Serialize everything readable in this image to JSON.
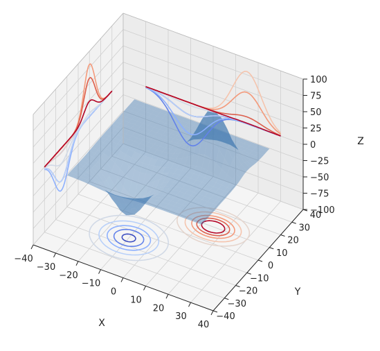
{
  "chart_data": {
    "type": "surface",
    "title": "",
    "xlabel": "X",
    "ylabel": "Y",
    "zlabel": "Z",
    "xlim": [
      -40,
      40
    ],
    "ylim": [
      -40,
      40
    ],
    "zlim": [
      -100,
      100
    ],
    "x_ticks": [
      "−40",
      "−30",
      "−20",
      "−10",
      "0",
      "10",
      "20",
      "30",
      "40"
    ],
    "y_ticks": [
      "−40",
      "−30",
      "−20",
      "−10",
      "0",
      "10",
      "20",
      "30",
      "40"
    ],
    "z_ticks": [
      "−100",
      "−75",
      "−50",
      "−25",
      "0",
      "25",
      "50",
      "75",
      "100"
    ],
    "x_tick_values": [
      -40,
      -30,
      -20,
      -10,
      0,
      10,
      20,
      30,
      40
    ],
    "y_tick_values": [
      -40,
      -30,
      -20,
      -10,
      0,
      10,
      20,
      30,
      40
    ],
    "z_tick_values": [
      -100,
      -75,
      -50,
      -25,
      0,
      25,
      50,
      75,
      100
    ],
    "surface": {
      "function": "axes3d test data: peak near (15, 10) z≈+80, trough near (-10, -15) z≈-65",
      "x_range": [
        -30,
        30
      ],
      "y_range": [
        -30,
        30
      ],
      "color": "#3b75af",
      "alpha": 0.45
    },
    "projections": [
      {
        "direction": "z",
        "offset": -100,
        "colormap": "coolwarm"
      },
      {
        "direction": "x",
        "offset": -40,
        "colormap": "coolwarm"
      },
      {
        "direction": "y",
        "offset": 40,
        "colormap": "coolwarm"
      }
    ],
    "contour_levels": [
      -60,
      -45,
      -30,
      -15,
      -5,
      5,
      15,
      30,
      45,
      60
    ],
    "colors": {
      "low": "#3b4cc0",
      "high": "#b40426",
      "pane_x": "#f2f2f2",
      "pane_y": "#ececec",
      "pane_z": "#f5f5f5",
      "grid": "#cfcfcf"
    }
  }
}
